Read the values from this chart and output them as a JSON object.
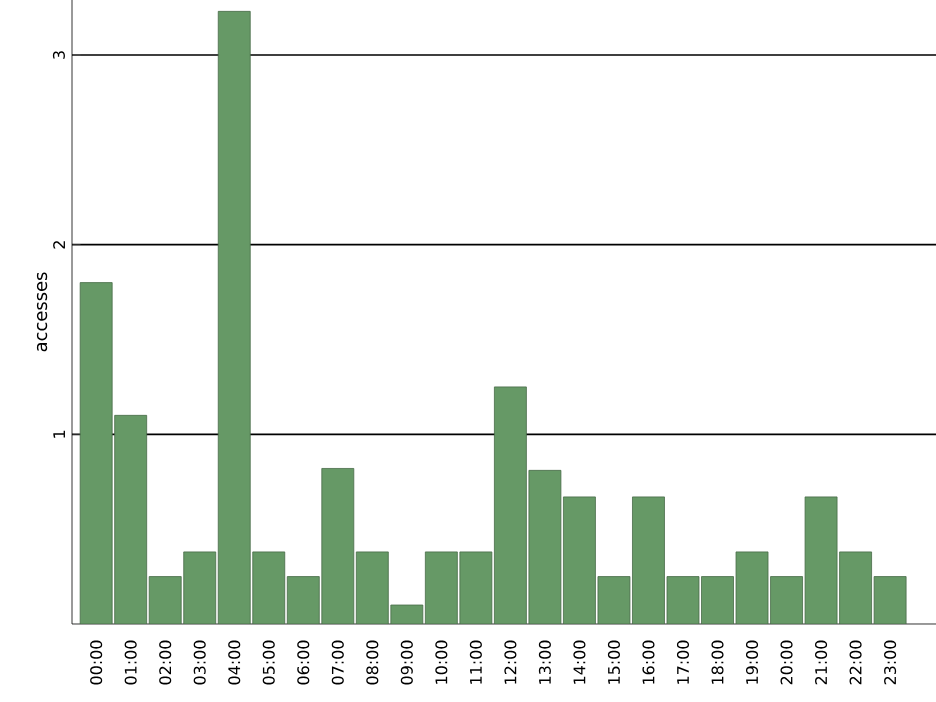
{
  "chart_data": {
    "type": "bar",
    "ylabel": "accesses",
    "categories": [
      "00:00",
      "01:00",
      "02:00",
      "03:00",
      "04:00",
      "05:00",
      "06:00",
      "07:00",
      "08:00",
      "09:00",
      "10:00",
      "11:00",
      "12:00",
      "13:00",
      "14:00",
      "15:00",
      "16:00",
      "17:00",
      "18:00",
      "19:00",
      "20:00",
      "21:00",
      "22:00",
      "23:00"
    ],
    "values": [
      1.8,
      1.1,
      0.25,
      0.38,
      3.23,
      0.38,
      0.25,
      0.82,
      0.38,
      0.1,
      0.38,
      0.38,
      1.25,
      0.81,
      0.67,
      0.25,
      0.67,
      0.25,
      0.25,
      0.38,
      0.25,
      0.67,
      0.38,
      0.25
    ],
    "color": "#669966",
    "ylim": [
      0,
      3.29
    ],
    "yticks": [
      1,
      2,
      3
    ],
    "grid": "y"
  }
}
